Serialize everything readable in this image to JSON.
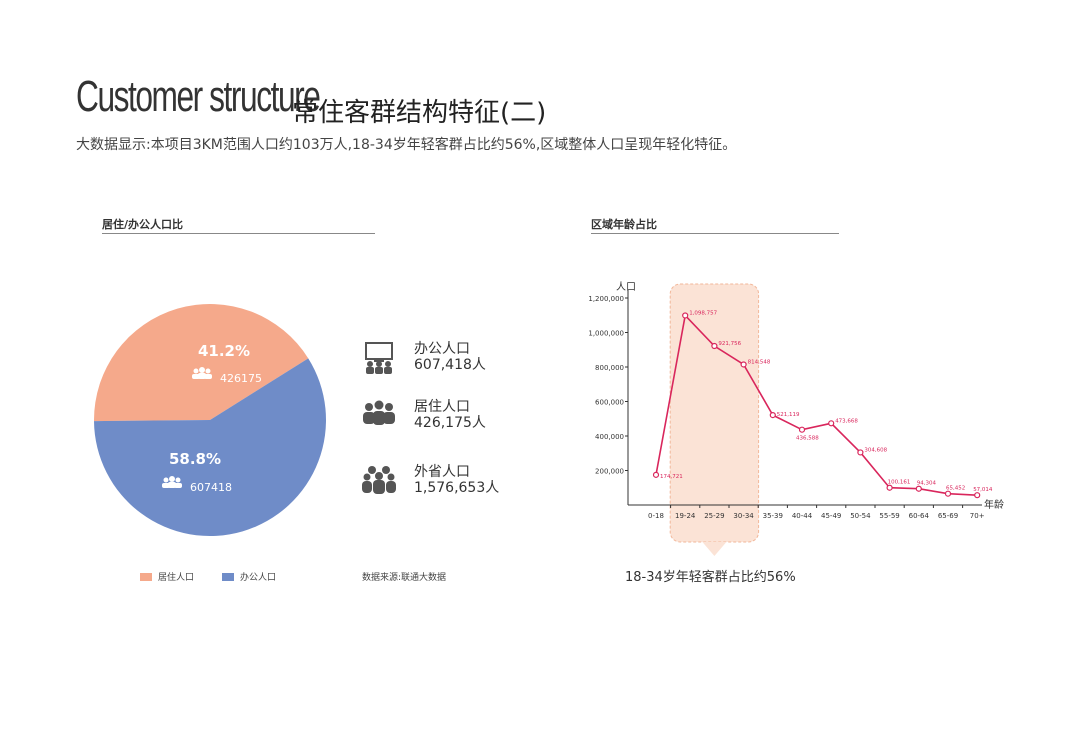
{
  "header": {
    "title_en": "Customer structure",
    "title_cn": "常住客群结构特征(二)",
    "subtitle": "大数据显示:本项目3KM范围人口约103万人,18-34岁年轻客群占比约56%,区域整体人口呈现年轻化特征。"
  },
  "left_section": {
    "title": "居住/办公人口比",
    "legend": [
      {
        "label": "居住人口",
        "color": "#F5A98B"
      },
      {
        "label": "办公人口",
        "color": "#6F8CC8"
      }
    ],
    "source": "数据来源:联通大数据",
    "side_stats": [
      {
        "icon": "office-people-icon",
        "label": "办公人口",
        "value": "607,418人"
      },
      {
        "icon": "resident-people-icon",
        "label": "居住人口",
        "value": "426,175人"
      },
      {
        "icon": "out-of-province-people-icon",
        "label": "外省人口",
        "value": "1,576,653人"
      }
    ]
  },
  "right_section": {
    "title": "区域年龄占比",
    "callout": "18-34岁年轻客群占比约56%"
  },
  "chart_data": [
    {
      "type": "pie",
      "title": "居住/办公人口比",
      "slices": [
        {
          "name": "居住人口",
          "percent_label": "41.2%",
          "value": 426175,
          "value_label": "426175",
          "color": "#F5A98B"
        },
        {
          "name": "办公人口",
          "percent_label": "58.8%",
          "value": 607418,
          "value_label": "607418",
          "color": "#6F8CC8"
        }
      ]
    },
    {
      "type": "line",
      "title": "区域年龄占比",
      "ylabel": "人口",
      "xlabel": "年龄",
      "ylim": [
        0,
        1200000
      ],
      "yticks": [
        {
          "value": 200000,
          "label": "200,000"
        },
        {
          "value": 400000,
          "label": "400,000"
        },
        {
          "value": 600000,
          "label": "600,000"
        },
        {
          "value": 800000,
          "label": "800,000"
        },
        {
          "value": 1000000,
          "label": "1,000,000"
        },
        {
          "value": 1200000,
          "label": "1,200,000"
        }
      ],
      "categories": [
        "0-18",
        "19-24",
        "25-29",
        "30-34",
        "35-39",
        "40-44",
        "45-49",
        "50-54",
        "55-59",
        "60-64",
        "65-69",
        "70+"
      ],
      "values": [
        174721,
        1098757,
        921756,
        814548,
        521119,
        436588,
        473668,
        304608,
        100161,
        94304,
        65452,
        57014
      ],
      "value_labels": [
        "174,721",
        "1,098,757",
        "921,756",
        "814,548",
        "521,119",
        "436,588",
        "473,668",
        "304,608",
        "100,161",
        "94,304",
        "65,452",
        "57,014"
      ],
      "highlight_range": [
        "19-24",
        "30-34"
      ],
      "line_color": "#D9265C",
      "highlight_color": "#FBE3D6"
    }
  ]
}
